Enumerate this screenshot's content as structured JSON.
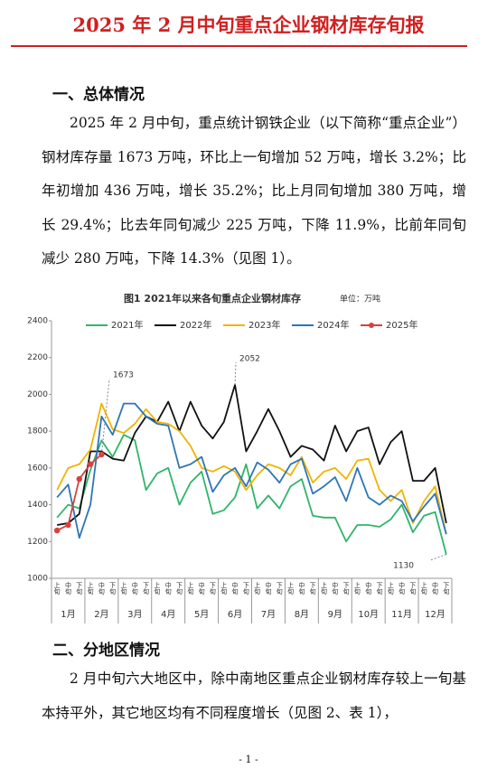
{
  "header": {
    "title": "2025 年 2 月中旬重点企业钢材库存旬报"
  },
  "section1": {
    "heading": "一、总体情况",
    "paragraph": "2025 年 2 月中旬，重点统计钢铁企业（以下简称“重点企业”）钢材库存量 1673 万吨，环比上一旬增加 52 万吨，增长 3.2%；比年初增加 436 万吨，增长 35.2%；比上月同旬增加 380 万吨，增长 29.4%；比去年同旬减少 225 万吨，下降 11.9%，比前年同旬减少 280 万吨，下降 14.3%（见图 1）。"
  },
  "chart_data": {
    "type": "line",
    "title": "图1  2021年以来各旬重点企业钢材库存",
    "unit": "单位：万吨",
    "categories": [
      "上旬",
      "中旬",
      "下旬",
      "上旬",
      "中旬",
      "下旬",
      "上旬",
      "中旬",
      "下旬",
      "上旬",
      "中旬",
      "下旬",
      "上旬",
      "中旬",
      "下旬",
      "上旬",
      "中旬",
      "下旬",
      "上旬",
      "中旬",
      "下旬",
      "上旬",
      "中旬",
      "下旬",
      "上旬",
      "中旬",
      "下旬",
      "上旬",
      "中旬",
      "下旬",
      "上旬",
      "中旬",
      "下旬",
      "上旬",
      "中旬",
      "下旬"
    ],
    "months": [
      "1月",
      "2月",
      "3月",
      "4月",
      "5月",
      "6月",
      "7月",
      "8月",
      "9月",
      "10月",
      "11月",
      "12月"
    ],
    "ylim": [
      1000,
      2400
    ],
    "yticks": [
      1000,
      1200,
      1400,
      1600,
      1800,
      2000,
      2200,
      2400
    ],
    "grid": false,
    "legend": "top",
    "series": [
      {
        "name": "2021年",
        "color": "#2fb56a",
        "values": [
          1330,
          1400,
          1380,
          1590,
          1750,
          1660,
          1780,
          1750,
          1480,
          1570,
          1600,
          1400,
          1520,
          1580,
          1350,
          1370,
          1440,
          1620,
          1380,
          1450,
          1380,
          1500,
          1540,
          1340,
          1330,
          1330,
          1200,
          1290,
          1290,
          1280,
          1320,
          1400,
          1250,
          1340,
          1360,
          1130
        ]
      },
      {
        "name": "2022年",
        "color": "#111111",
        "values": [
          1290,
          1300,
          1350,
          1690,
          1690,
          1650,
          1640,
          1790,
          1880,
          1850,
          1960,
          1800,
          1960,
          1830,
          1760,
          1850,
          2052,
          1690,
          1800,
          1920,
          1800,
          1660,
          1720,
          1700,
          1640,
          1830,
          1690,
          1800,
          1820,
          1620,
          1740,
          1800,
          1530,
          1530,
          1600,
          1300
        ]
      },
      {
        "name": "2023年",
        "color": "#f0b400",
        "values": [
          1480,
          1600,
          1620,
          1700,
          1950,
          1810,
          1790,
          1840,
          1920,
          1850,
          1840,
          1800,
          1720,
          1600,
          1580,
          1610,
          1580,
          1480,
          1560,
          1620,
          1600,
          1560,
          1660,
          1520,
          1580,
          1600,
          1540,
          1640,
          1650,
          1480,
          1420,
          1480,
          1300,
          1420,
          1500,
          1240
        ]
      },
      {
        "name": "2024年",
        "color": "#2e75b6",
        "values": [
          1440,
          1510,
          1220,
          1400,
          1880,
          1780,
          1950,
          1950,
          1880,
          1840,
          1830,
          1600,
          1620,
          1660,
          1470,
          1560,
          1600,
          1500,
          1630,
          1590,
          1520,
          1620,
          1650,
          1460,
          1500,
          1550,
          1420,
          1600,
          1440,
          1400,
          1450,
          1420,
          1310,
          1390,
          1460,
          1240
        ]
      },
      {
        "name": "2025年",
        "color": "#d94040",
        "values": [
          1260,
          1290,
          1540,
          1621,
          1673,
          null,
          null,
          null,
          null,
          null,
          null,
          null,
          null,
          null,
          null,
          null,
          null,
          null,
          null,
          null,
          null,
          null,
          null,
          null,
          null,
          null,
          null,
          null,
          null,
          null,
          null,
          null,
          null,
          null,
          null,
          null
        ]
      }
    ],
    "annotations": [
      "1673",
      "2052",
      "1130"
    ]
  },
  "section2": {
    "heading": "二、分地区情况",
    "paragraph": "2 月中旬六大地区中，除中南地区重点企业钢材库存较上一旬基本持平外，其它地区均有不同程度增长（见图 2、表 1），"
  },
  "footer": {
    "page": "- 1 -"
  }
}
